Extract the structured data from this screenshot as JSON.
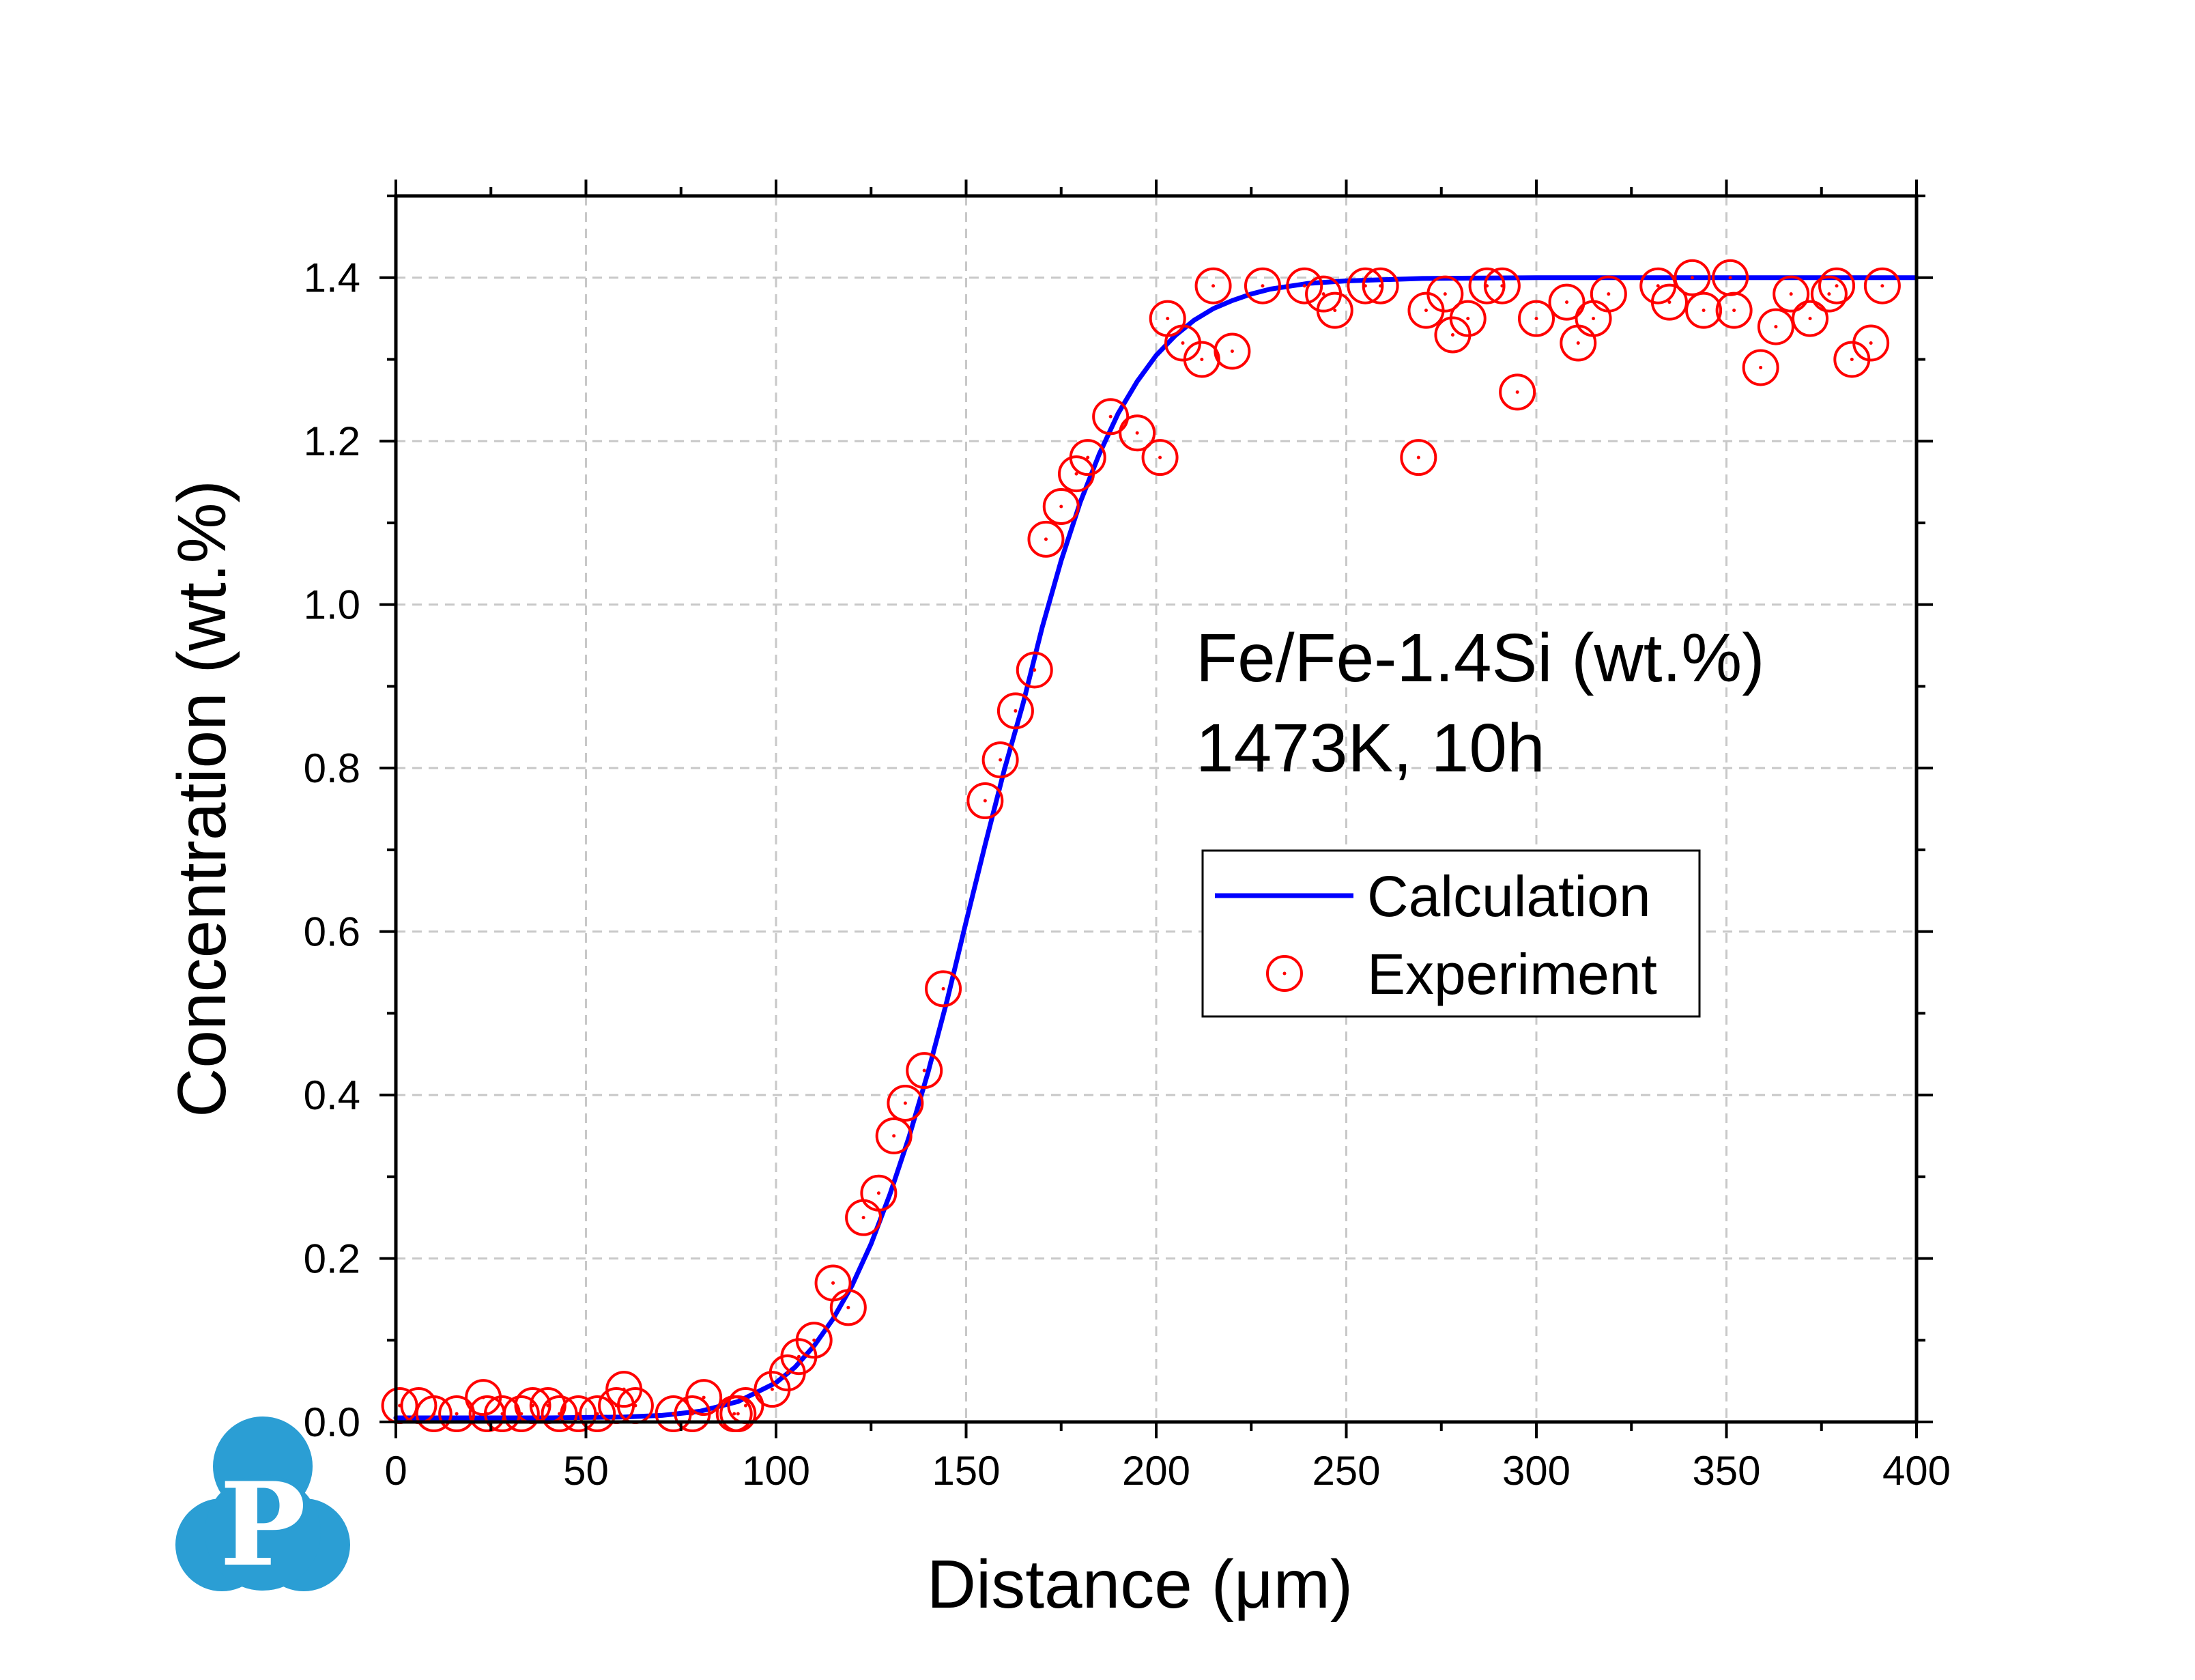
{
  "chart_data": {
    "type": "scatter",
    "xlabel": "Distance (μm)",
    "ylabel": "Concentration (wt.%)",
    "xlim": [
      0,
      400
    ],
    "ylim": [
      0,
      1.5
    ],
    "xticks": [
      0,
      50,
      100,
      150,
      200,
      250,
      300,
      350,
      400
    ],
    "yticks": [
      0.0,
      0.2,
      0.4,
      0.6,
      0.8,
      1.0,
      1.2,
      1.4
    ],
    "xtick_labels": [
      "0",
      "50",
      "100",
      "150",
      "200",
      "250",
      "300",
      "350",
      "400"
    ],
    "ytick_labels": [
      "0.0",
      "0.2",
      "0.4",
      "0.6",
      "0.8",
      "1.0",
      "1.2",
      "1.4"
    ],
    "grid": true,
    "legend_placement": "center-right",
    "annotations": [
      "Fe/Fe-1.4Si (wt.%)",
      "1473K, 10h"
    ],
    "series": [
      {
        "name": "Calculation",
        "kind": "line",
        "color": "#0000ff",
        "x": [
          0,
          20,
          40,
          60,
          70,
          80,
          90,
          100,
          105,
          110,
          115,
          120,
          125,
          130,
          135,
          140,
          145,
          150,
          155,
          160,
          165,
          170,
          175,
          180,
          185,
          190,
          195,
          200,
          205,
          210,
          215,
          220,
          225,
          230,
          240,
          250,
          270,
          300,
          350,
          400
        ],
        "y": [
          0.005,
          0.005,
          0.005,
          0.006,
          0.008,
          0.013,
          0.025,
          0.048,
          0.067,
          0.093,
          0.126,
          0.167,
          0.218,
          0.279,
          0.349,
          0.428,
          0.516,
          0.612,
          0.706,
          0.797,
          0.879,
          0.972,
          1.054,
          1.125,
          1.184,
          1.234,
          1.273,
          1.305,
          1.329,
          1.348,
          1.362,
          1.372,
          1.38,
          1.386,
          1.393,
          1.396,
          1.399,
          1.4,
          1.4,
          1.4
        ]
      },
      {
        "name": "Experiment",
        "kind": "scatter",
        "color": "#ff0000",
        "x": [
          1,
          6,
          10,
          16,
          23,
          24,
          28,
          33,
          36,
          40,
          43,
          48,
          53,
          58,
          60,
          63,
          73,
          78,
          81,
          89,
          90,
          92,
          99,
          103,
          106,
          110,
          115,
          119,
          123,
          127,
          131,
          134,
          139,
          144,
          155,
          159,
          163,
          168,
          171,
          175,
          179,
          182,
          188,
          195,
          201,
          203,
          207,
          212,
          215,
          220,
          228,
          239,
          244,
          247,
          255,
          259,
          269,
          271,
          276,
          278,
          282,
          287,
          291,
          295,
          300,
          308,
          311,
          315,
          319,
          332,
          335,
          341,
          344,
          351,
          352,
          359,
          363,
          367,
          372,
          377,
          379,
          383,
          388,
          391
        ],
        "y": [
          0.02,
          0.02,
          0.01,
          0.01,
          0.03,
          0.01,
          0.01,
          0.01,
          0.02,
          0.02,
          0.01,
          0.01,
          0.01,
          0.02,
          0.04,
          0.02,
          0.01,
          0.01,
          0.03,
          0.01,
          0.01,
          0.02,
          0.04,
          0.06,
          0.08,
          0.1,
          0.17,
          0.14,
          0.25,
          0.28,
          0.35,
          0.39,
          0.43,
          0.53,
          0.76,
          0.81,
          0.87,
          0.92,
          1.08,
          1.12,
          1.16,
          1.18,
          1.23,
          1.21,
          1.18,
          1.35,
          1.32,
          1.3,
          1.39,
          1.31,
          1.39,
          1.39,
          1.38,
          1.36,
          1.39,
          1.39,
          1.18,
          1.36,
          1.38,
          1.33,
          1.35,
          1.39,
          1.39,
          1.26,
          1.35,
          1.37,
          1.32,
          1.35,
          1.38,
          1.39,
          1.37,
          1.4,
          1.36,
          1.4,
          1.36,
          1.29,
          1.34,
          1.38,
          1.35,
          1.38,
          1.39,
          1.3,
          1.32,
          1.39
        ]
      }
    ]
  },
  "logo": {
    "letter": "P",
    "color": "#2b9ed4"
  }
}
